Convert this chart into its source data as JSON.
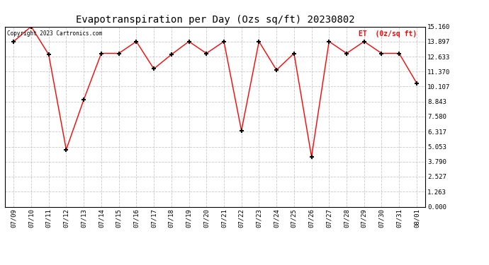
{
  "title": "Evapotranspiration per Day (Ozs sq/ft) 20230802",
  "copyright": "Copyright 2023 Cartronics.com",
  "legend_label": "ET  (0z/sq ft)",
  "dates": [
    "07/09",
    "07/10",
    "07/11",
    "07/12",
    "07/13",
    "07/14",
    "07/15",
    "07/16",
    "07/17",
    "07/18",
    "07/19",
    "07/20",
    "07/21",
    "07/22",
    "07/23",
    "07/24",
    "07/25",
    "07/26",
    "07/27",
    "07/28",
    "07/29",
    "07/30",
    "07/31",
    "08/01"
  ],
  "values": [
    13.9,
    15.16,
    12.8,
    4.8,
    9.0,
    12.9,
    12.9,
    13.9,
    11.6,
    12.8,
    13.9,
    12.9,
    13.9,
    6.4,
    13.9,
    11.5,
    12.9,
    4.2,
    13.9,
    12.9,
    13.9,
    12.9,
    12.9,
    10.4
  ],
  "line_color": "red",
  "marker_color": "black",
  "background_color": "#ffffff",
  "grid_color": "#bbbbbb",
  "yticks": [
    0.0,
    1.263,
    2.527,
    3.79,
    5.053,
    6.317,
    7.58,
    8.843,
    10.107,
    11.37,
    12.633,
    13.897,
    15.16
  ],
  "ylim": [
    0.0,
    15.16
  ],
  "title_fontsize": 10,
  "legend_color": "red",
  "copyright_color": "black",
  "tick_fontsize": 6.5
}
